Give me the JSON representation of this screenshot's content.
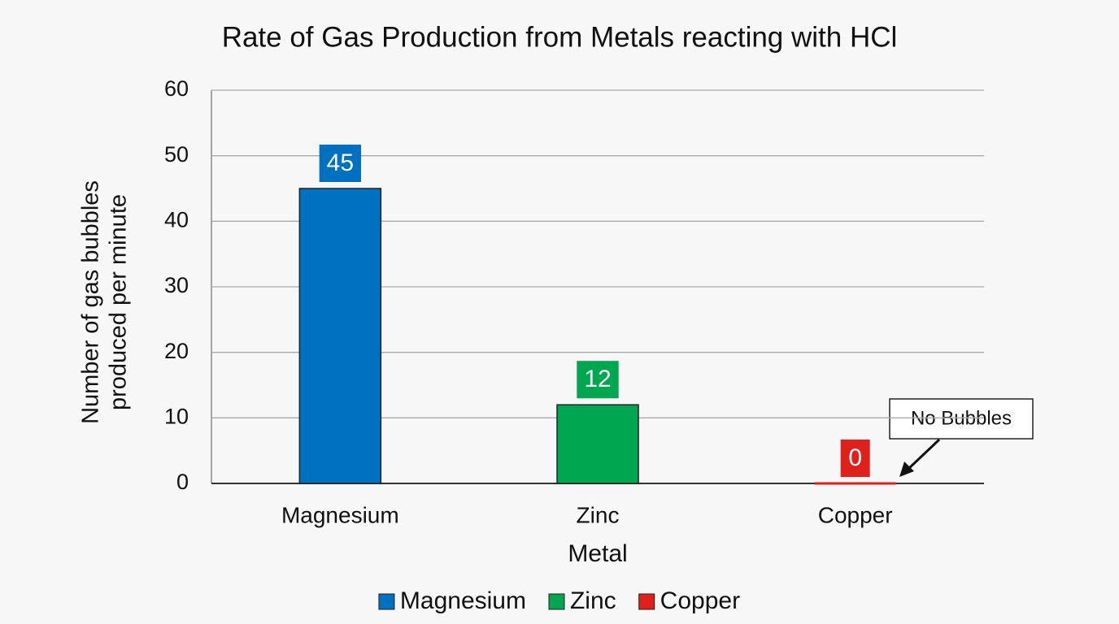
{
  "chart_data": {
    "type": "bar",
    "title": "Rate of Gas Production from Metals reacting with HCl",
    "xlabel": "Metal",
    "ylabel": [
      "Number of gas bubbles",
      "produced per minute"
    ],
    "categories": [
      "Magnesium",
      "Zinc",
      "Copper"
    ],
    "values": [
      45,
      12,
      0
    ],
    "colors": [
      "#0070c0",
      "#00a650",
      "#e0201b"
    ],
    "ylim": [
      0,
      60
    ],
    "yticks": [
      0,
      10,
      20,
      30,
      40,
      50,
      60
    ],
    "grid": true,
    "legend": "bottom",
    "annotation": "No Bubbles"
  }
}
